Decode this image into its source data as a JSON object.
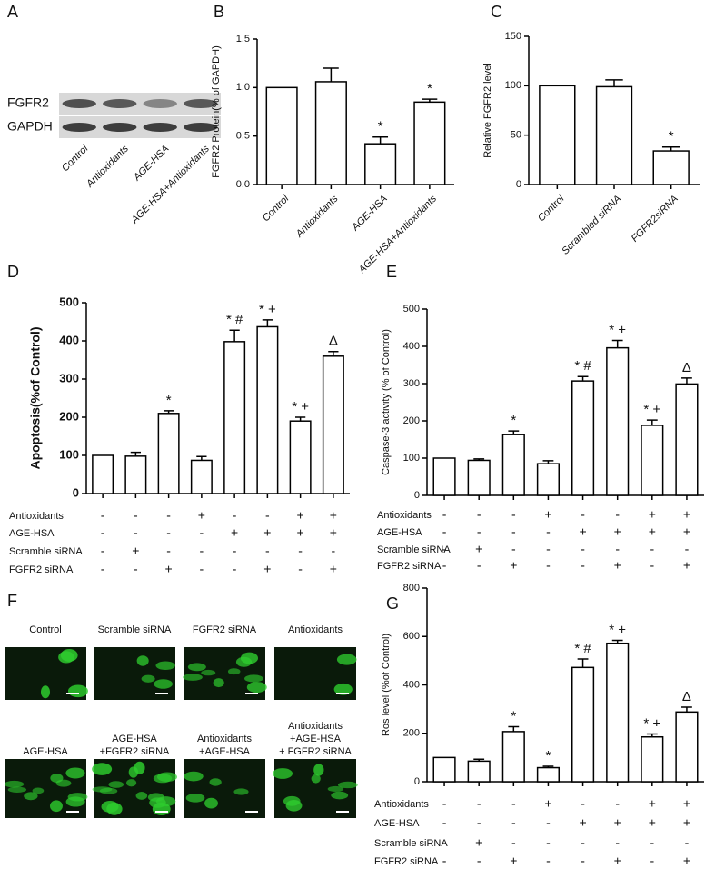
{
  "chart_data": [
    {
      "type": "blot",
      "panel": "A",
      "rows": [
        "FGFR2",
        "GAPDH"
      ],
      "categories": [
        "Control",
        "Antioxidants",
        "AGE-HSA",
        "AGE-HSA+Antioxidants"
      ]
    },
    {
      "type": "bar",
      "panel": "B",
      "ylabel": "FGFR2  Protein(% of GAPDH)",
      "color": "#ffffff",
      "categories": [
        "Control",
        "Antioxidants",
        "AGE-HSA",
        "AGE-HSA+Antioxidants"
      ],
      "values": [
        1.0,
        1.06,
        0.42,
        0.85
      ],
      "errors": [
        null,
        0.14,
        0.07,
        0.03
      ],
      "annotations": [
        null,
        null,
        "*",
        "*"
      ],
      "ylim": [
        0,
        1.5
      ],
      "yticks": [
        {
          "value": 0,
          "label": "0.0"
        },
        {
          "value": 0.5,
          "label": "0.5"
        },
        {
          "value": 1,
          "label": "1.0"
        },
        {
          "value": 1.5,
          "label": "1.5"
        }
      ]
    },
    {
      "type": "bar",
      "panel": "C",
      "ylabel": "Relative FGFR2 level",
      "color": "#ffffff",
      "categories": [
        "Control",
        "Scrambled siRNA",
        "FGFR2siRNA"
      ],
      "values": [
        100,
        99,
        34
      ],
      "errors": [
        null,
        7,
        4
      ],
      "annotations": [
        null,
        null,
        "*"
      ],
      "ylim": [
        0,
        150
      ],
      "yticks": [
        0,
        50,
        100,
        150
      ]
    },
    {
      "type": "bar",
      "panel": "D",
      "ylabel": "Apoptosis(%of Control)",
      "color": "#ffffff",
      "values": [
        100,
        98,
        210,
        87,
        398,
        437,
        190,
        360
      ],
      "errors": [
        null,
        10,
        7,
        10,
        30,
        18,
        10,
        12
      ],
      "annotations": [
        null,
        null,
        "*",
        null,
        "* #",
        "* +",
        "* +",
        "Δ"
      ],
      "ylim": [
        0,
        500
      ],
      "yticks": [
        0,
        100,
        200,
        300,
        400,
        500
      ],
      "conditions": [
        {
          "name": "Antioxidants",
          "marks": [
            "-",
            "-",
            "-",
            "+",
            "-",
            "-",
            "+",
            "+"
          ]
        },
        {
          "name": "AGE-HSA",
          "marks": [
            "-",
            "-",
            "-",
            "-",
            "+",
            "+",
            "+",
            "+"
          ]
        },
        {
          "name": "Scramble siRNA",
          "marks": [
            "-",
            "+",
            "-",
            "-",
            "-",
            "-",
            "-",
            "-"
          ]
        },
        {
          "name": "FGFR2 siRNA",
          "marks": [
            "-",
            "-",
            "+",
            "-",
            "-",
            "+",
            "-",
            "+"
          ]
        }
      ]
    },
    {
      "type": "bar",
      "panel": "E",
      "ylabel": "Caspase-3 activity (% of Control)",
      "color": "#ffffff",
      "values": [
        100,
        94,
        163,
        85,
        307,
        396,
        188,
        299
      ],
      "errors": [
        null,
        4,
        10,
        8,
        12,
        20,
        14,
        16
      ],
      "annotations": [
        null,
        null,
        "*",
        null,
        "* #",
        "* +",
        "* +",
        "Δ"
      ],
      "ylim": [
        0,
        500
      ],
      "yticks": [
        0,
        100,
        200,
        300,
        400,
        500
      ],
      "conditions": [
        {
          "name": "Antioxidants",
          "marks": [
            "-",
            "-",
            "-",
            "+",
            "-",
            "-",
            "+",
            "+"
          ]
        },
        {
          "name": "AGE-HSA",
          "marks": [
            "-",
            "-",
            "-",
            "-",
            "+",
            "+",
            "+",
            "+"
          ]
        },
        {
          "name": "Scramble siRNA",
          "marks": [
            "-",
            "+",
            "-",
            "-",
            "-",
            "-",
            "-",
            "-"
          ]
        },
        {
          "name": "FGFR2 siRNA",
          "marks": [
            "-",
            "-",
            "+",
            "-",
            "-",
            "+",
            "-",
            "+"
          ]
        }
      ]
    },
    {
      "type": "images",
      "panel": "F",
      "labels": [
        [
          "Control"
        ],
        [
          "Scramble siRNA"
        ],
        [
          "FGFR2 siRNA"
        ],
        [
          "Antioxidants"
        ],
        [
          "AGE-HSA"
        ],
        [
          "AGE-HSA",
          "+FGFR2 siRNA"
        ],
        [
          "Antioxidants",
          "+AGE-HSA"
        ],
        [
          "Antioxidants",
          "+AGE-HSA",
          "+ FGFR2 siRNA"
        ]
      ]
    },
    {
      "type": "bar",
      "panel": "G",
      "ylabel": "Ros level (%of Control)",
      "color": "#ffffff",
      "values": [
        100,
        85,
        207,
        58,
        472,
        572,
        185,
        288
      ],
      "errors": [
        null,
        8,
        20,
        6,
        35,
        12,
        12,
        20
      ],
      "annotations": [
        null,
        null,
        "*",
        "*",
        "* #",
        "* +",
        "* +",
        "Δ"
      ],
      "ylim": [
        0,
        800
      ],
      "yticks": [
        0,
        200,
        400,
        600,
        800
      ],
      "conditions": [
        {
          "name": "Antioxidants",
          "marks": [
            "-",
            "-",
            "-",
            "+",
            "-",
            "-",
            "+",
            "+"
          ]
        },
        {
          "name": "AGE-HSA",
          "marks": [
            "-",
            "-",
            "-",
            "-",
            "+",
            "+",
            "+",
            "+"
          ]
        },
        {
          "name": "Scramble siRNA",
          "marks": [
            "-",
            "+",
            "-",
            "-",
            "-",
            "-",
            "-",
            "-"
          ]
        },
        {
          "name": "FGFR2 siRNA",
          "marks": [
            "-",
            "-",
            "+",
            "-",
            "-",
            "+",
            "-",
            "+"
          ]
        }
      ]
    }
  ]
}
